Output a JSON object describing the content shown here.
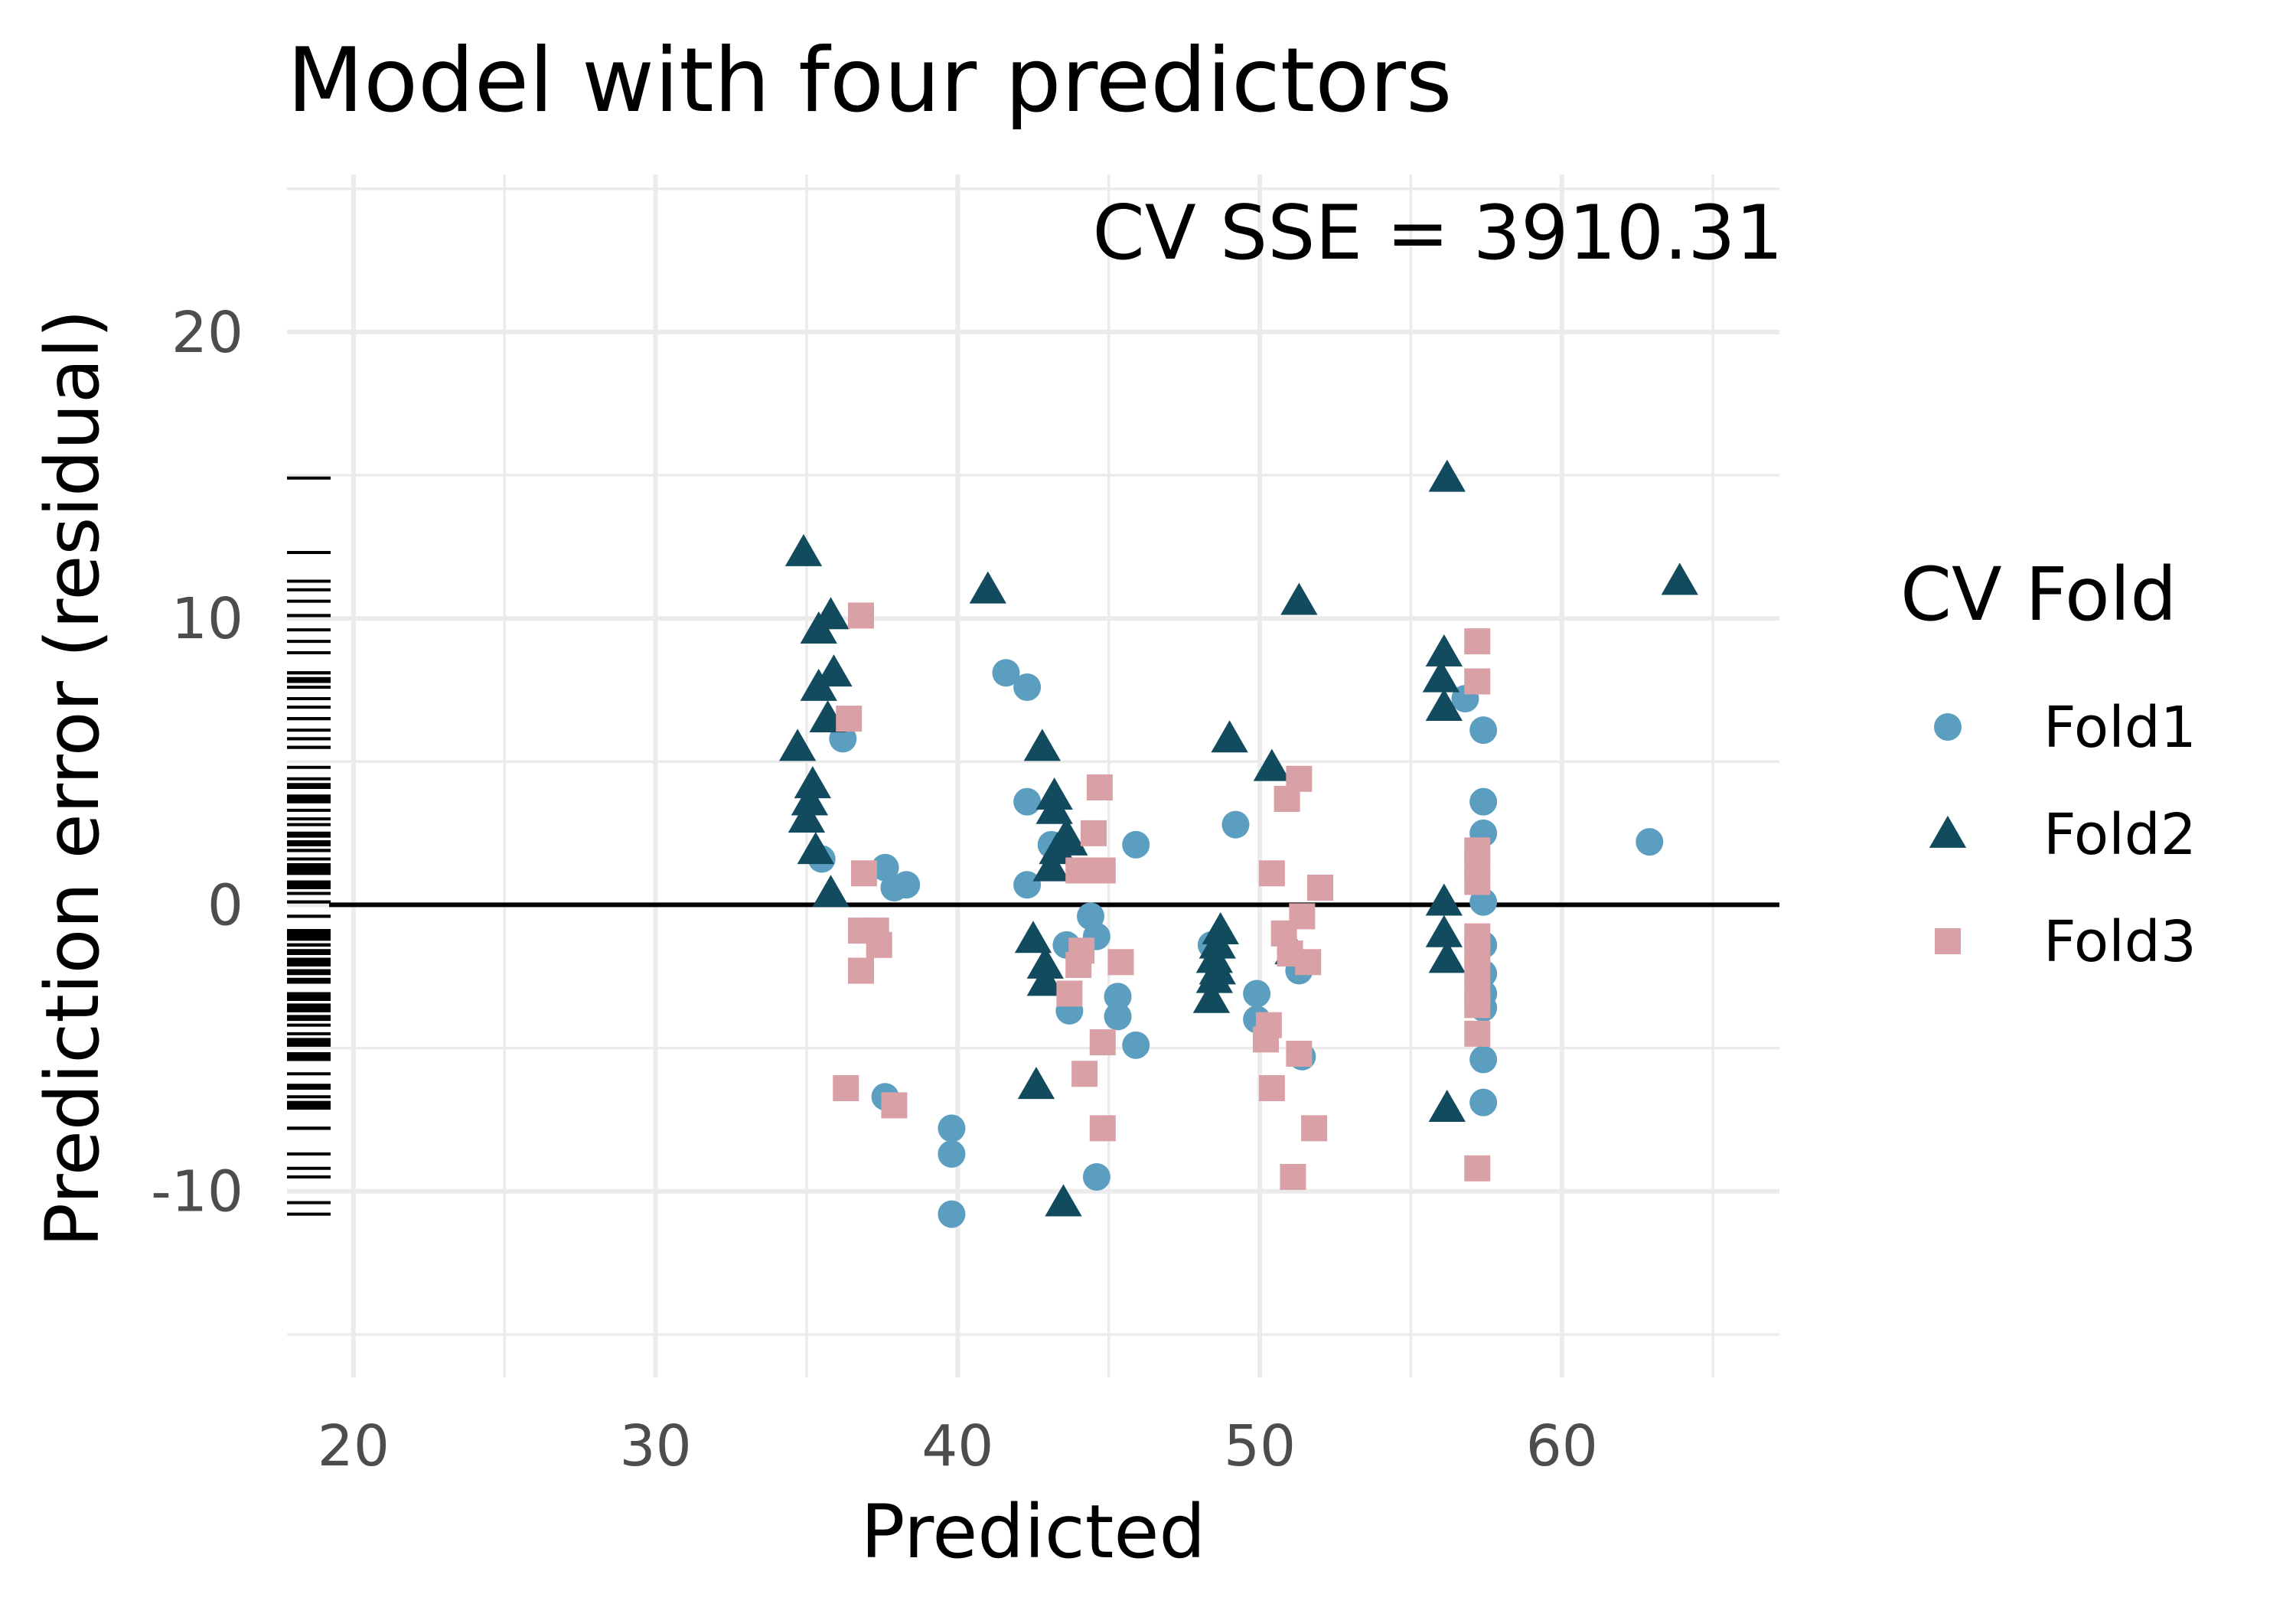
{
  "chart_data": {
    "type": "scatter",
    "title": "Model with four predictors",
    "xlabel": "Predicted",
    "ylabel": "Prediction error (residual)",
    "xlim": [
      17.8,
      67.2
    ],
    "ylim": [
      -16.5,
      25.5
    ],
    "x_ticks": [
      20,
      30,
      40,
      50,
      60
    ],
    "y_ticks": [
      -10,
      0,
      10,
      20
    ],
    "x_tick_labels": [
      "20",
      "30",
      "40",
      "50",
      "60"
    ],
    "y_tick_labels": [
      "-10",
      "0",
      "10",
      "20"
    ],
    "grid": true,
    "reference_line_y": 0,
    "rug": "left",
    "annotation": "CV SSE = 3910.31",
    "legend": {
      "title": "CV Fold",
      "position": "right",
      "entries": [
        "Fold1",
        "Fold2",
        "Fold3"
      ]
    },
    "series": [
      {
        "name": "Fold1",
        "marker": "circle",
        "color": "#5b9ebf",
        "points": [
          [
            36.2,
            5.8
          ],
          [
            35.5,
            1.6
          ],
          [
            37.6,
            1.3
          ],
          [
            37.9,
            0.6
          ],
          [
            38.3,
            0.7
          ],
          [
            37.6,
            -6.7
          ],
          [
            39.8,
            -7.8
          ],
          [
            39.8,
            -8.7
          ],
          [
            39.8,
            -10.8
          ],
          [
            41.6,
            8.1
          ],
          [
            42.3,
            7.6
          ],
          [
            42.3,
            3.6
          ],
          [
            42.3,
            0.7
          ],
          [
            43.1,
            2.1
          ],
          [
            43.6,
            -1.4
          ],
          [
            43.7,
            -3.7
          ],
          [
            44.4,
            -0.4
          ],
          [
            44.6,
            -1.1
          ],
          [
            44.6,
            -9.5
          ],
          [
            45.3,
            -3.2
          ],
          [
            45.3,
            -3.9
          ],
          [
            45.9,
            2.1
          ],
          [
            45.9,
            -4.9
          ],
          [
            48.4,
            -1.4
          ],
          [
            49.2,
            2.8
          ],
          [
            49.9,
            -3.1
          ],
          [
            49.9,
            -4.0
          ],
          [
            51.3,
            -2.3
          ],
          [
            51.4,
            -5.3
          ],
          [
            56.8,
            7.2
          ],
          [
            57.4,
            6.1
          ],
          [
            57.4,
            3.6
          ],
          [
            57.4,
            2.5
          ],
          [
            57.4,
            0.1
          ],
          [
            57.4,
            -1.4
          ],
          [
            57.4,
            -2.4
          ],
          [
            57.4,
            -3.1
          ],
          [
            57.4,
            -3.6
          ],
          [
            57.4,
            -5.4
          ],
          [
            57.4,
            -6.9
          ],
          [
            62.9,
            2.2
          ]
        ]
      },
      {
        "name": "Fold2",
        "marker": "triangle",
        "color": "#124a5e",
        "points": [
          [
            34.9,
            12.3
          ],
          [
            35.4,
            9.6
          ],
          [
            35.8,
            10.1
          ],
          [
            35.4,
            7.6
          ],
          [
            35.9,
            8.1
          ],
          [
            35.7,
            6.5
          ],
          [
            34.7,
            5.5
          ],
          [
            35.2,
            4.2
          ],
          [
            35.1,
            3.6
          ],
          [
            35.0,
            3.0
          ],
          [
            35.3,
            1.9
          ],
          [
            35.8,
            0.4
          ],
          [
            41.0,
            11.0
          ],
          [
            42.8,
            5.5
          ],
          [
            43.2,
            3.8
          ],
          [
            43.2,
            3.3
          ],
          [
            43.6,
            2.4
          ],
          [
            43.7,
            2.2
          ],
          [
            43.3,
            1.9
          ],
          [
            43.1,
            1.3
          ],
          [
            42.5,
            -1.2
          ],
          [
            42.9,
            -2.1
          ],
          [
            42.9,
            -2.7
          ],
          [
            42.6,
            -6.3
          ],
          [
            43.5,
            -10.4
          ],
          [
            48.7,
            -0.9
          ],
          [
            48.6,
            -1.4
          ],
          [
            48.5,
            -1.9
          ],
          [
            48.6,
            -2.3
          ],
          [
            48.5,
            -2.6
          ],
          [
            48.4,
            -3.3
          ],
          [
            49.0,
            5.8
          ],
          [
            50.4,
            4.8
          ],
          [
            51.1,
            -1.6
          ],
          [
            51.3,
            10.6
          ],
          [
            56.2,
            14.9
          ],
          [
            56.1,
            8.8
          ],
          [
            56.0,
            7.9
          ],
          [
            56.1,
            6.9
          ],
          [
            56.1,
            0.1
          ],
          [
            56.1,
            -1.0
          ],
          [
            56.2,
            -1.9
          ],
          [
            56.2,
            -7.1
          ],
          [
            63.9,
            11.3
          ]
        ]
      },
      {
        "name": "Fold3",
        "marker": "square",
        "color": "#d9a0a6",
        "points": [
          [
            36.8,
            10.1
          ],
          [
            36.4,
            6.5
          ],
          [
            36.9,
            1.1
          ],
          [
            36.8,
            -0.9
          ],
          [
            37.3,
            -0.9
          ],
          [
            37.4,
            -1.4
          ],
          [
            36.8,
            -2.3
          ],
          [
            36.3,
            -6.4
          ],
          [
            37.9,
            -7.0
          ],
          [
            44.7,
            4.1
          ],
          [
            44.5,
            2.5
          ],
          [
            44.0,
            1.2
          ],
          [
            44.4,
            1.2
          ],
          [
            44.8,
            1.2
          ],
          [
            44.1,
            -1.6
          ],
          [
            44.0,
            -2.1
          ],
          [
            45.4,
            -2.0
          ],
          [
            43.7,
            -3.1
          ],
          [
            44.8,
            -4.8
          ],
          [
            44.2,
            -5.9
          ],
          [
            44.8,
            -7.8
          ],
          [
            51.3,
            4.4
          ],
          [
            50.9,
            3.7
          ],
          [
            50.4,
            1.1
          ],
          [
            52.0,
            0.6
          ],
          [
            51.4,
            -0.4
          ],
          [
            50.8,
            -1.0
          ],
          [
            51.0,
            -1.7
          ],
          [
            51.6,
            -2.0
          ],
          [
            50.3,
            -4.2
          ],
          [
            50.2,
            -4.7
          ],
          [
            51.3,
            -5.2
          ],
          [
            50.4,
            -6.4
          ],
          [
            51.8,
            -7.8
          ],
          [
            51.1,
            -9.5
          ],
          [
            57.2,
            9.2
          ],
          [
            57.2,
            7.8
          ],
          [
            57.2,
            1.9
          ],
          [
            57.2,
            1.4
          ],
          [
            57.2,
            0.8
          ],
          [
            57.2,
            -1.1
          ],
          [
            57.2,
            -1.6
          ],
          [
            57.2,
            -2.3
          ],
          [
            57.2,
            -3.1
          ],
          [
            57.2,
            -3.5
          ],
          [
            57.2,
            -4.5
          ],
          [
            57.2,
            -9.2
          ]
        ]
      }
    ]
  }
}
